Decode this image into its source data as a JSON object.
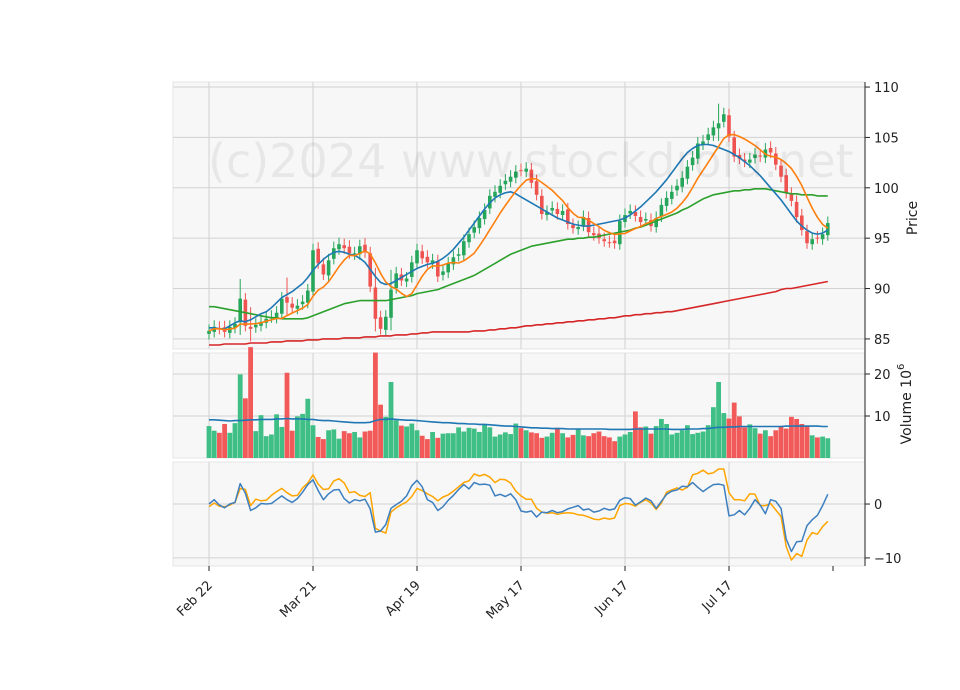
{
  "watermark": "(c)2024 www.stockdroid.net",
  "chart_data": {
    "type": "candlestick",
    "x_tick_labels": [
      "Feb 22",
      "Mar 21",
      "Apr 19",
      "May 17",
      "Jun 17",
      "Jul 17"
    ],
    "x_tick_index": [
      0,
      20,
      40,
      60,
      80,
      100
    ],
    "price_panel": {
      "ylabel": "Price",
      "ylim": [
        84,
        110.5
      ],
      "yticks": [
        85,
        90,
        95,
        100,
        105,
        110
      ],
      "close": [
        85.8,
        86.2,
        86.0,
        85.7,
        86.2,
        86.5,
        89.0,
        86.3,
        86.0,
        86.4,
        86.7,
        87.0,
        87.2,
        87.6,
        89.0,
        88.6,
        88.1,
        88.3,
        88.7,
        89.8,
        93.8,
        92.5,
        91.4,
        92.8,
        94.0,
        94.4,
        94.0,
        93.5,
        93.5,
        94.2,
        93.6,
        90.2,
        87.0,
        86.0,
        87.2,
        89.9,
        91.5,
        90.8,
        91.0,
        92.6,
        93.8,
        93.0,
        92.6,
        92.8,
        91.2,
        91.7,
        92.5,
        93.1,
        93.4,
        94.7,
        95.4,
        96.1,
        97.0,
        97.8,
        99.2,
        99.6,
        100.2,
        100.7,
        101.1,
        101.6,
        101.7,
        101.9,
        100.5,
        99.3,
        97.4,
        97.6,
        98.0,
        97.4,
        97.7,
        96.4,
        96.0,
        96.1,
        97.1,
        95.6,
        95.3,
        95.0,
        94.7,
        94.6,
        94.5,
        96.7,
        97.3,
        97.7,
        97.2,
        96.6,
        96.9,
        96.2,
        97.0,
        98.3,
        99.0,
        99.6,
        100.2,
        101.0,
        102.1,
        103.0,
        104.4,
        104.6,
        105.3,
        106.0,
        106.4,
        107.3,
        105.1,
        103.1,
        102.9,
        102.6,
        102.8,
        103.3,
        103.1,
        103.8,
        103.5,
        102.3,
        101.1,
        99.5,
        98.7,
        97.1,
        95.8,
        94.5,
        94.9,
        95.0,
        95.4,
        96.5
      ],
      "ma_short": [
        86.1,
        86.1,
        86.0,
        86.0,
        86.3,
        86.6,
        86.8,
        86.7,
        86.9,
        87.2,
        87.5,
        87.7,
        88.1,
        88.6,
        89.1,
        89.4,
        89.7,
        90.1,
        90.5,
        91.1,
        91.8,
        92.4,
        92.9,
        93.3,
        93.6,
        93.7,
        93.6,
        93.4,
        93.3,
        93.0,
        92.6,
        91.9,
        91.2,
        90.6,
        90.4,
        90.5,
        90.8,
        91.1,
        91.4,
        91.7,
        92.0,
        92.2,
        92.4,
        92.5,
        92.7,
        93.0,
        93.4,
        93.9,
        94.5,
        95.1,
        95.8,
        96.5,
        97.2,
        97.9,
        98.5,
        99.0,
        99.3,
        99.5,
        99.6,
        99.4,
        99.1,
        98.8,
        98.5,
        98.2,
        97.9,
        97.6,
        97.3,
        97.0,
        96.8,
        96.6,
        96.4,
        96.3,
        96.2,
        96.2,
        96.3,
        96.4,
        96.5,
        96.6,
        96.7,
        96.8,
        97.0,
        97.3,
        97.7,
        98.1,
        98.6,
        99.1,
        99.6,
        100.2,
        100.8,
        101.5,
        102.2,
        102.9,
        103.5,
        103.9,
        104.2,
        104.3,
        104.3,
        104.2,
        104.0,
        103.8,
        103.6,
        103.3,
        103.0,
        102.6,
        102.2,
        101.7,
        101.2,
        100.6,
        100.0,
        99.4,
        98.8,
        98.1,
        97.4,
        96.7,
        96.2,
        95.8,
        95.5,
        95.4,
        95.5,
        95.8
      ],
      "ma_mid": [
        88.2,
        88.2,
        88.1,
        88.0,
        87.9,
        87.8,
        87.7,
        87.6,
        87.5,
        87.4,
        87.3,
        87.2,
        87.1,
        87.1,
        87.0,
        87.0,
        87.0,
        87.0,
        87.0,
        87.1,
        87.3,
        87.5,
        87.7,
        87.9,
        88.1,
        88.3,
        88.5,
        88.6,
        88.7,
        88.8,
        88.8,
        88.8,
        88.8,
        88.8,
        88.8,
        88.9,
        89.0,
        89.1,
        89.2,
        89.3,
        89.5,
        89.6,
        89.7,
        89.8,
        89.9,
        90.1,
        90.3,
        90.5,
        90.7,
        90.9,
        91.1,
        91.3,
        91.6,
        91.9,
        92.2,
        92.5,
        92.8,
        93.1,
        93.4,
        93.6,
        93.8,
        94.0,
        94.2,
        94.3,
        94.4,
        94.5,
        94.6,
        94.7,
        94.8,
        94.9,
        94.9,
        95.0,
        95.0,
        95.1,
        95.1,
        95.2,
        95.3,
        95.4,
        95.5,
        95.6,
        95.7,
        95.8,
        96.0,
        96.1,
        96.3,
        96.5,
        96.7,
        96.9,
        97.1,
        97.3,
        97.5,
        97.8,
        98.0,
        98.3,
        98.6,
        98.9,
        99.1,
        99.3,
        99.4,
        99.5,
        99.6,
        99.7,
        99.7,
        99.8,
        99.8,
        99.9,
        99.9,
        99.9,
        99.8,
        99.7,
        99.6,
        99.5,
        99.4,
        99.4,
        99.3,
        99.3,
        99.3,
        99.2,
        99.2,
        99.2
      ],
      "ma_long": [
        84.4,
        84.4,
        84.4,
        84.5,
        84.5,
        84.5,
        84.5,
        84.5,
        84.6,
        84.6,
        84.6,
        84.6,
        84.7,
        84.7,
        84.7,
        84.8,
        84.8,
        84.8,
        84.8,
        84.9,
        84.9,
        84.9,
        85.0,
        85.0,
        85.0,
        85.0,
        85.1,
        85.1,
        85.1,
        85.1,
        85.2,
        85.2,
        85.2,
        85.3,
        85.3,
        85.3,
        85.4,
        85.4,
        85.4,
        85.5,
        85.5,
        85.6,
        85.6,
        85.7,
        85.7,
        85.7,
        85.7,
        85.7,
        85.7,
        85.7,
        85.7,
        85.8,
        85.8,
        85.8,
        85.9,
        85.9,
        86.0,
        86.0,
        86.1,
        86.1,
        86.2,
        86.3,
        86.3,
        86.4,
        86.4,
        86.5,
        86.5,
        86.6,
        86.6,
        86.7,
        86.7,
        86.8,
        86.8,
        86.9,
        86.9,
        87.0,
        87.0,
        87.1,
        87.1,
        87.2,
        87.3,
        87.3,
        87.4,
        87.4,
        87.5,
        87.5,
        87.6,
        87.6,
        87.7,
        87.7,
        87.8,
        87.9,
        88.0,
        88.1,
        88.2,
        88.3,
        88.4,
        88.5,
        88.6,
        88.7,
        88.8,
        88.9,
        89.0,
        89.1,
        89.2,
        89.3,
        89.4,
        89.5,
        89.6,
        89.7,
        89.9,
        90.0,
        90.0,
        90.1,
        90.2,
        90.3,
        90.4,
        90.5,
        90.6,
        90.7
      ]
    },
    "volume_panel": {
      "ylabel": "Volume  10",
      "ylabel_exponent": "6",
      "ylim": [
        0,
        25
      ],
      "yticks": [
        10,
        20
      ],
      "volume": [
        7.6,
        6.5,
        6.0,
        8.1,
        6.0,
        8.3,
        19.9,
        14.2,
        26.4,
        6.4,
        10.2,
        5.2,
        5.6,
        10.4,
        7.4,
        20.3,
        6.5,
        9.9,
        10.5,
        14.1,
        7.8,
        5.0,
        4.5,
        6.6,
        6.8,
        4.6,
        6.4,
        5.9,
        6.2,
        4.9,
        6.3,
        6.5,
        25.1,
        12.7,
        9.8,
        18.1,
        9.0,
        7.7,
        7.5,
        8.2,
        6.6,
        5.3,
        4.5,
        6.2,
        4.8,
        5.8,
        5.9,
        5.9,
        7.3,
        6.3,
        7.2,
        7.0,
        6.2,
        7.9,
        7.3,
        5.1,
        5.6,
        6.1,
        5.7,
        8.2,
        7.1,
        6.6,
        6.1,
        5.9,
        4.8,
        5.1,
        6.0,
        7.2,
        5.9,
        4.9,
        5.5,
        6.8,
        5.4,
        5.2,
        5.9,
        6.3,
        5.2,
        4.9,
        4.0,
        5.1,
        5.6,
        6.2,
        11.1,
        7.3,
        7.5,
        5.8,
        7.6,
        9.3,
        8.1,
        5.6,
        6.0,
        6.6,
        7.8,
        5.7,
        6.0,
        6.3,
        7.8,
        12.1,
        18.1,
        10.7,
        9.4,
        13.2,
        9.9,
        7.3,
        8.0,
        7.1,
        5.8,
        6.6,
        5.2,
        6.6,
        7.4,
        7.0,
        9.8,
        9.3,
        8.1,
        7.6,
        5.4,
        4.9,
        5.1,
        4.7,
        4.3
      ],
      "volume_ma": [
        9.1,
        9.1,
        9.0,
        8.9,
        8.8,
        8.9,
        8.9,
        9.0,
        9.1,
        9.1,
        9.2,
        9.2,
        9.2,
        9.3,
        9.3,
        9.4,
        9.3,
        9.3,
        9.3,
        9.2,
        9.2,
        9.0,
        8.9,
        8.9,
        8.8,
        8.7,
        8.6,
        8.5,
        8.4,
        8.4,
        8.4,
        8.5,
        8.9,
        9.2,
        9.2,
        9.3,
        9.2,
        9.1,
        9.0,
        9.0,
        8.9,
        8.8,
        8.7,
        8.6,
        8.5,
        8.4,
        8.4,
        8.3,
        8.2,
        8.2,
        8.1,
        8.1,
        8.0,
        8.0,
        7.9,
        7.8,
        7.7,
        7.6,
        7.6,
        7.5,
        7.4,
        7.3,
        7.2,
        7.2,
        7.1,
        7.1,
        7.0,
        7.0,
        7.0,
        6.9,
        6.9,
        6.9,
        6.9,
        6.9,
        6.9,
        6.9,
        6.9,
        6.8,
        6.8,
        6.8,
        6.8,
        6.8,
        6.9,
        6.9,
        6.9,
        6.9,
        6.9,
        6.9,
        6.9,
        6.8,
        6.8,
        6.8,
        6.9,
        6.9,
        6.9,
        7.0,
        7.0,
        7.2,
        7.3,
        7.3,
        7.4,
        7.4,
        7.5,
        7.5,
        7.5,
        7.5,
        7.5,
        7.5,
        7.5,
        7.5,
        7.5,
        7.6,
        7.6,
        7.6,
        7.6,
        7.6,
        7.6,
        7.6,
        7.5,
        7.5
      ]
    },
    "indicator_panel": {
      "ylim": [
        -11.5,
        7.8
      ],
      "yticks": [
        -10,
        0
      ],
      "line_blue": [
        0.0,
        0.8,
        -0.2,
        -0.7,
        0.0,
        0.3,
        3.8,
        2.0,
        -1.2,
        -0.7,
        0.1,
        0.0,
        0.1,
        0.8,
        1.5,
        0.8,
        0.3,
        1.0,
        2.2,
        3.6,
        4.5,
        2.5,
        0.8,
        1.9,
        2.6,
        2.7,
        1.0,
        0.2,
        0.8,
        0.6,
        0.9,
        -0.9,
        -5.2,
        -5.0,
        -3.8,
        -0.8,
        -0.1,
        0.5,
        1.5,
        3.4,
        4.4,
        3.2,
        0.8,
        0.3,
        -1.2,
        -0.5,
        0.7,
        1.6,
        2.7,
        3.6,
        2.8,
        4.0,
        3.6,
        3.7,
        3.5,
        1.5,
        1.8,
        1.4,
        1.9,
        0.8,
        -1.3,
        -1.5,
        -1.3,
        -2.4,
        -1.5,
        -1.6,
        -1.2,
        -1.6,
        -1.4,
        -0.9,
        -0.6,
        -0.3,
        -1.1,
        -0.9,
        -1.5,
        -1.3,
        -0.8,
        -1.1,
        -0.9,
        0.7,
        1.2,
        1.0,
        -0.2,
        0.4,
        1.1,
        0.6,
        -0.8,
        0.5,
        1.8,
        2.4,
        2.6,
        3.3,
        3.2,
        4.0,
        3.1,
        2.3,
        3.0,
        3.6,
        3.7,
        3.5,
        -2.2,
        -2.0,
        -1.2,
        -2.0,
        -0.8,
        0.8,
        -0.2,
        -1.8,
        0.8,
        0.5,
        -0.8,
        -6.5,
        -8.8,
        -7.0,
        -6.9,
        -4.0,
        -2.9,
        -2.1,
        -0.3,
        1.8
      ],
      "line_orange": [
        -0.5,
        0.2,
        -0.4,
        -0.5,
        -0.2,
        0.3,
        2.9,
        2.7,
        -0.3,
        0.9,
        0.6,
        0.7,
        1.6,
        2.3,
        2.9,
        2.1,
        1.5,
        1.6,
        3.0,
        3.9,
        5.4,
        3.7,
        2.7,
        2.8,
        4.3,
        4.7,
        3.9,
        2.1,
        2.3,
        1.6,
        1.4,
        2.1,
        -4.5,
        -5.0,
        -5.4,
        -1.5,
        -0.7,
        -0.1,
        0.4,
        1.4,
        2.9,
        2.5,
        1.9,
        1.4,
        0.6,
        1.3,
        1.7,
        2.4,
        3.2,
        4.0,
        4.3,
        5.6,
        5.2,
        5.5,
        5.0,
        4.0,
        4.6,
        4.5,
        3.9,
        2.4,
        1.5,
        0.9,
        0.9,
        -0.8,
        -1.5,
        -1.7,
        -1.6,
        -1.9,
        -1.7,
        -1.6,
        -1.7,
        -2.0,
        -2.1,
        -2.4,
        -2.8,
        -2.9,
        -2.6,
        -2.8,
        -2.6,
        -0.3,
        0.1,
        0.0,
        -0.4,
        0.3,
        0.8,
        0.2,
        -1.0,
        0.2,
        2.2,
        2.6,
        3.0,
        2.6,
        3.1,
        5.4,
        5.7,
        6.3,
        5.6,
        5.8,
        6.5,
        6.5,
        2.1,
        0.8,
        0.8,
        0.6,
        1.9,
        1.8,
        -0.3,
        -0.3,
        0.1,
        -1.1,
        -2.3,
        -7.9,
        -10.4,
        -9.2,
        -9.7,
        -6.7,
        -5.3,
        -5.6,
        -4.2,
        -3.2
      ]
    },
    "series": [
      {
        "name": "",
        "color": "#1f77b4"
      },
      {
        "name": "",
        "color": "#ff7f0e"
      },
      {
        "name": "",
        "color": "#2ca02c"
      },
      {
        "name": "",
        "color": "#d62728"
      }
    ],
    "colors": {
      "up": "#26a65b",
      "down": "#ef5350",
      "volume_up": "#3fbf85",
      "volume_down": "#f25a5a",
      "panel_bg": "#f7f7f7",
      "grid": "#d2d2d2",
      "indicator_blue": "#3d7fbf",
      "indicator_orange": "#ffa500"
    },
    "grid": true,
    "legend": "none"
  }
}
